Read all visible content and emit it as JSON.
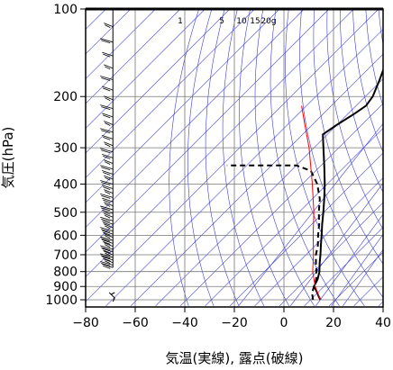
{
  "chart_data": {
    "type": "line",
    "title": "",
    "xlabel": "気温(実線), 露点(破線)",
    "ylabel": "気圧(hPa)",
    "x_ticks": [
      -80,
      -60,
      -40,
      -20,
      0,
      20,
      40
    ],
    "x_tick_labels": [
      "−80",
      "−60",
      "−40",
      "−20",
      "0",
      "20",
      "40"
    ],
    "xlim": [
      -80,
      40
    ],
    "y_scale": "log",
    "ylim": [
      1050,
      100
    ],
    "y_ticks": [
      100,
      200,
      300,
      400,
      500,
      600,
      700,
      800,
      900,
      1000
    ],
    "y_tick_labels": [
      "100",
      "200",
      "300",
      "400",
      "500",
      "600",
      "700",
      "800",
      "900",
      "1000"
    ],
    "skew": "skew-T (isotherms inclined ~45°)",
    "grid": true,
    "mixing_ratio_labels": [
      "1",
      "5",
      "10",
      "15",
      "20g"
    ],
    "mixing_ratio_values": [
      1,
      5,
      10,
      15,
      20
    ],
    "series": [
      {
        "style": "solid",
        "color": "#000000",
        "points": [
          {
            "p": 1000,
            "t": 14.0
          },
          {
            "p": 975,
            "t": 12.0
          },
          {
            "p": 950,
            "t": 10.2
          },
          {
            "p": 925,
            "t": 8.2
          },
          {
            "p": 900,
            "t": 6.0
          },
          {
            "p": 850,
            "t": 4.6
          },
          {
            "p": 800,
            "t": 2.2
          },
          {
            "p": 750,
            "t": -1.0
          },
          {
            "p": 700,
            "t": -4.2
          },
          {
            "p": 650,
            "t": -7.8
          },
          {
            "p": 600,
            "t": -11.6
          },
          {
            "p": 550,
            "t": -15.8
          },
          {
            "p": 500,
            "t": -20.2
          },
          {
            "p": 450,
            "t": -25.2
          },
          {
            "p": 400,
            "t": -31.0
          },
          {
            "p": 350,
            "t": -38.0
          },
          {
            "p": 300,
            "t": -46.2
          },
          {
            "p": 270,
            "t": -51.8
          },
          {
            "p": 250,
            "t": -50.0
          },
          {
            "p": 230,
            "t": -47.5
          },
          {
            "p": 215,
            "t": -46.0
          },
          {
            "p": 200,
            "t": -47.0
          },
          {
            "p": 175,
            "t": -51.0
          },
          {
            "p": 150,
            "t": -56.0
          },
          {
            "p": 125,
            "t": -61.5
          },
          {
            "p": 110,
            "t": -63.5
          },
          {
            "p": 100,
            "t": -62.5
          }
        ]
      },
      {
        "style": "dashed",
        "color": "#000000",
        "points": [
          {
            "p": 1000,
            "t": 11.0
          },
          {
            "p": 950,
            "t": 8.0
          },
          {
            "p": 900,
            "t": 6.0
          },
          {
            "p": 850,
            "t": 4.0
          },
          {
            "p": 800,
            "t": 1.0
          },
          {
            "p": 750,
            "t": -2.5
          },
          {
            "p": 700,
            "t": -6.0
          },
          {
            "p": 650,
            "t": -9.0
          },
          {
            "p": 600,
            "t": -13.0
          },
          {
            "p": 550,
            "t": -17.0
          },
          {
            "p": 500,
            "t": -22.0
          },
          {
            "p": 450,
            "t": -27.0
          },
          {
            "p": 400,
            "t": -34.0
          },
          {
            "p": 360,
            "t": -42.0
          },
          {
            "p": 345,
            "t": -50.0
          },
          {
            "p": 345,
            "t": -63.0
          },
          {
            "p": 345,
            "t": -78.0
          }
        ]
      },
      {
        "style": "solid",
        "color": "#ff0000",
        "points": [
          {
            "p": 1000,
            "t": 14.0
          },
          {
            "p": 900,
            "t": 6.5
          },
          {
            "p": 800,
            "t": -0.5
          },
          {
            "p": 700,
            "t": -7.0
          },
          {
            "p": 600,
            "t": -15.0
          },
          {
            "p": 500,
            "t": -24.0
          },
          {
            "p": 400,
            "t": -36.0
          },
          {
            "p": 300,
            "t": -52.0
          },
          {
            "p": 250,
            "t": -63.0
          },
          {
            "p": 215,
            "t": -72.0
          }
        ]
      }
    ],
    "wind_barbs": {
      "axis_x_value": -69,
      "pressures": [
        1000,
        775,
        760,
        745,
        730,
        715,
        700,
        685,
        670,
        655,
        640,
        625,
        610,
        595,
        580,
        565,
        550,
        535,
        520,
        505,
        490,
        475,
        460,
        445,
        430,
        415,
        400,
        385,
        370,
        355,
        340,
        325,
        310,
        295,
        280,
        265,
        250,
        235,
        220,
        205,
        190,
        175,
        160,
        145,
        130,
        115,
        100
      ]
    }
  }
}
